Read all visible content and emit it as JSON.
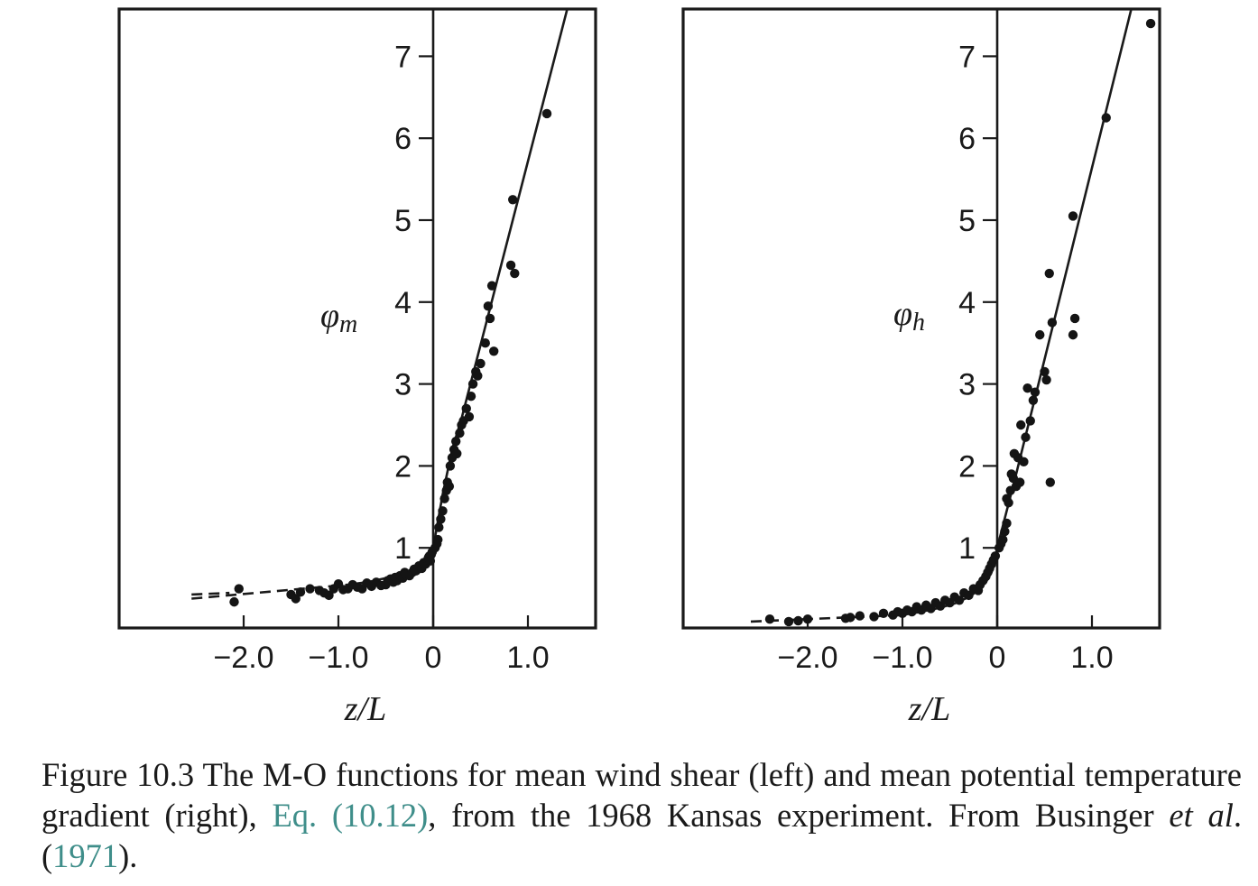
{
  "caption": {
    "part1": "Figure 10.3 The M-O functions for mean wind shear (left) and mean potential temperature gradient (right), ",
    "link1": "Eq. (10.12)",
    "part2": ", from the 1968 Kansas experiment. From Businger ",
    "italic": "et al",
    "part3": ". (",
    "link2": "1971",
    "part4": ").",
    "link_color": "#3f8e8a"
  },
  "chart_data": [
    {
      "type": "scatter",
      "panel": "left",
      "xlabel": "z/L",
      "ylabel": "φm",
      "ylabel_symbol": "φ",
      "ylabel_sub": "m",
      "xlim": [
        -3.3,
        1.7
      ],
      "ylim": [
        0.0,
        7.6
      ],
      "xticks": [
        -2.0,
        -1.0,
        0,
        1.0
      ],
      "xtick_labels": [
        "-2.0",
        "-1.0",
        "0",
        "1.0"
      ],
      "yticks": [
        1,
        2,
        3,
        4,
        5,
        6,
        7
      ],
      "ytick_labels": [
        "1",
        "2",
        "3",
        "4",
        "5",
        "6",
        "7"
      ],
      "grid": false,
      "fit_line_solid": {
        "x": [
          -0.9,
          -0.7,
          -0.5,
          -0.35,
          -0.25,
          -0.15,
          -0.08,
          -0.03,
          0,
          0.1,
          0.2,
          0.3,
          1.42
        ],
        "y": [
          0.55,
          0.58,
          0.63,
          0.68,
          0.72,
          0.78,
          0.84,
          0.9,
          1.0,
          1.65,
          2.2,
          2.58,
          7.6
        ]
      },
      "fit_line_dashed": {
        "x": [
          -2.55,
          -0.9
        ],
        "y": [
          0.38,
          0.55
        ]
      },
      "dashed_line_offset": {
        "x": [
          -2.55,
          -2.15
        ],
        "y": [
          0.43,
          0.45
        ]
      },
      "points": {
        "x": [
          -2.1,
          -2.05,
          -1.5,
          -1.45,
          -1.4,
          -1.3,
          -1.2,
          -1.15,
          -1.1,
          -1.05,
          -1.0,
          -0.95,
          -0.9,
          -0.85,
          -0.8,
          -0.75,
          -0.7,
          -0.65,
          -0.6,
          -0.55,
          -0.5,
          -0.48,
          -0.45,
          -0.42,
          -0.4,
          -0.38,
          -0.35,
          -0.32,
          -0.3,
          -0.28,
          -0.25,
          -0.22,
          -0.2,
          -0.18,
          -0.15,
          -0.12,
          -0.1,
          -0.08,
          -0.06,
          -0.05,
          -0.04,
          -0.03,
          -0.02,
          -0.01,
          0.02,
          0.04,
          0.05,
          0.06,
          0.08,
          0.1,
          0.12,
          0.14,
          0.15,
          0.17,
          0.18,
          0.2,
          0.22,
          0.24,
          0.25,
          0.28,
          0.3,
          0.32,
          0.35,
          0.38,
          0.4,
          0.42,
          0.45,
          0.47,
          0.5,
          0.55,
          0.58,
          0.6,
          0.62,
          0.64,
          0.82,
          0.84,
          0.86,
          1.2
        ],
        "y": [
          0.34,
          0.5,
          0.43,
          0.38,
          0.46,
          0.5,
          0.48,
          0.45,
          0.42,
          0.5,
          0.56,
          0.49,
          0.5,
          0.55,
          0.52,
          0.5,
          0.57,
          0.53,
          0.58,
          0.54,
          0.55,
          0.6,
          0.62,
          0.58,
          0.64,
          0.6,
          0.66,
          0.63,
          0.7,
          0.67,
          0.66,
          0.7,
          0.74,
          0.72,
          0.78,
          0.75,
          0.82,
          0.8,
          0.85,
          0.88,
          0.9,
          0.84,
          0.92,
          0.95,
          1.0,
          1.05,
          1.1,
          1.25,
          1.35,
          1.45,
          1.6,
          1.7,
          1.8,
          1.75,
          2.0,
          2.1,
          2.2,
          2.3,
          2.15,
          2.4,
          2.5,
          2.55,
          2.7,
          2.6,
          2.85,
          3.0,
          3.15,
          3.1,
          3.25,
          3.5,
          3.95,
          3.8,
          4.2,
          3.4,
          4.45,
          5.25,
          4.35,
          6.3
        ]
      }
    },
    {
      "type": "scatter",
      "panel": "right",
      "xlabel": "z/L",
      "ylabel": "φh",
      "ylabel_symbol": "φ",
      "ylabel_sub": "h",
      "xlim": [
        -3.3,
        1.7
      ],
      "ylim": [
        0.0,
        7.6
      ],
      "xticks": [
        -2.0,
        -1.0,
        0,
        1.0
      ],
      "xtick_labels": [
        "-2.0",
        "-1.0",
        "0",
        "1.0"
      ],
      "yticks": [
        1,
        2,
        3,
        4,
        5,
        6,
        7
      ],
      "ytick_labels": [
        "1",
        "2",
        "3",
        "4",
        "5",
        "6",
        "7"
      ],
      "grid": false,
      "fit_line_solid": {
        "x": [
          -1.0,
          -0.8,
          -0.6,
          -0.45,
          -0.3,
          -0.2,
          -0.12,
          -0.06,
          -0.02,
          0,
          0.2,
          1.42
        ],
        "y": [
          0.18,
          0.22,
          0.27,
          0.32,
          0.4,
          0.48,
          0.58,
          0.7,
          0.85,
          1.0,
          1.9,
          7.6
        ]
      },
      "fit_line_dashed": {
        "x": [
          -2.6,
          -1.0
        ],
        "y": [
          0.1,
          0.18
        ]
      },
      "points": {
        "x": [
          -2.4,
          -2.2,
          -2.1,
          -2.0,
          -1.6,
          -1.55,
          -1.45,
          -1.3,
          -1.2,
          -1.1,
          -1.05,
          -1.0,
          -0.95,
          -0.9,
          -0.85,
          -0.8,
          -0.75,
          -0.7,
          -0.65,
          -0.6,
          -0.55,
          -0.5,
          -0.45,
          -0.4,
          -0.35,
          -0.3,
          -0.25,
          -0.2,
          -0.18,
          -0.15,
          -0.12,
          -0.1,
          -0.08,
          -0.06,
          -0.04,
          -0.02,
          0.02,
          0.04,
          0.06,
          0.08,
          0.1,
          0.1,
          0.12,
          0.14,
          0.15,
          0.17,
          0.18,
          0.2,
          0.22,
          0.24,
          0.25,
          0.28,
          0.3,
          0.32,
          0.35,
          0.38,
          0.4,
          0.45,
          0.5,
          0.52,
          0.55,
          0.56,
          0.58,
          0.8,
          0.8,
          0.82,
          1.15,
          1.62
        ],
        "y": [
          0.13,
          0.1,
          0.11,
          0.13,
          0.14,
          0.15,
          0.17,
          0.16,
          0.2,
          0.18,
          0.22,
          0.2,
          0.24,
          0.22,
          0.28,
          0.24,
          0.3,
          0.26,
          0.33,
          0.29,
          0.36,
          0.33,
          0.4,
          0.36,
          0.45,
          0.42,
          0.5,
          0.48,
          0.55,
          0.6,
          0.65,
          0.7,
          0.75,
          0.8,
          0.85,
          0.9,
          1.0,
          1.05,
          1.1,
          1.2,
          1.3,
          1.6,
          1.55,
          1.7,
          1.9,
          1.85,
          2.15,
          1.75,
          2.1,
          1.8,
          2.5,
          2.05,
          2.35,
          2.95,
          2.55,
          2.8,
          2.9,
          3.6,
          3.15,
          3.05,
          4.35,
          1.8,
          3.75,
          3.6,
          5.05,
          3.8,
          6.25,
          7.4
        ]
      }
    }
  ]
}
